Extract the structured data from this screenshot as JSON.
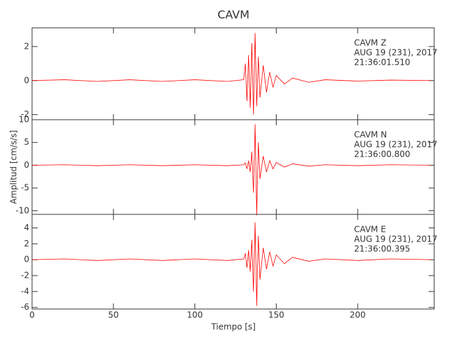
{
  "chart_data": {
    "type": "line",
    "title": "CAVM",
    "xlabel": "Tiempo [s]",
    "ylabel": "Amplitud [cm/s/s]",
    "xlim": [
      0,
      247
    ],
    "xticks": [
      0,
      50,
      100,
      150,
      200
    ],
    "x": [
      0,
      20,
      40,
      60,
      80,
      100,
      120,
      130,
      131,
      132,
      133,
      134,
      135,
      136,
      137,
      138,
      139,
      140,
      142,
      144,
      146,
      148,
      150,
      155,
      160,
      170,
      180,
      200,
      220,
      245
    ],
    "panels": [
      {
        "annotation": [
          "CAVM   Z",
          "AUG 19 (231), 2017",
          "21:36:01.510"
        ],
        "ylim": [
          -2.3,
          3.1
        ],
        "yticks": [
          -2,
          0,
          2
        ],
        "color": "#ff0000",
        "values": [
          0,
          0.05,
          -0.05,
          0.05,
          -0.05,
          0.05,
          -0.05,
          0.05,
          1.0,
          -1.2,
          1.5,
          -1.6,
          2.2,
          -2.0,
          2.8,
          -1.5,
          1.4,
          -1.0,
          0.9,
          -0.7,
          0.5,
          -0.4,
          0.3,
          -0.2,
          0.15,
          -0.1,
          0.05,
          -0.03,
          0.03,
          0
        ]
      },
      {
        "annotation": [
          "CAVM   N",
          "AUG 19 (231), 2017",
          "21:36:00.800"
        ],
        "ylim": [
          -10.8,
          10
        ],
        "yticks": [
          -10,
          -5,
          0,
          5,
          10
        ],
        "color": "#ff0000",
        "values": [
          0,
          0.1,
          -0.1,
          0.1,
          -0.1,
          0.1,
          -0.1,
          0.1,
          0.5,
          -0.8,
          1,
          -1.5,
          3,
          -6,
          9,
          -11,
          5,
          -3,
          2,
          -1.5,
          1,
          -0.8,
          0.6,
          -0.4,
          0.3,
          -0.2,
          0.1,
          -0.1,
          0.1,
          0
        ]
      },
      {
        "annotation": [
          "CAVM   E",
          "AUG 19 (231), 2017",
          "21:36:00.395"
        ],
        "ylim": [
          -6.2,
          5.7
        ],
        "yticks": [
          -6,
          -4,
          -2,
          0,
          2,
          4
        ],
        "color": "#ff0000",
        "values": [
          0,
          0.1,
          -0.1,
          0.1,
          -0.1,
          0.1,
          -0.1,
          0.1,
          0.8,
          -1,
          1.2,
          -1.5,
          2.5,
          -4,
          4.7,
          -5.8,
          3,
          -2.5,
          1.5,
          -1.2,
          1,
          -0.8,
          0.6,
          -0.5,
          0.3,
          -0.2,
          0.1,
          -0.1,
          0.1,
          0
        ]
      }
    ]
  }
}
